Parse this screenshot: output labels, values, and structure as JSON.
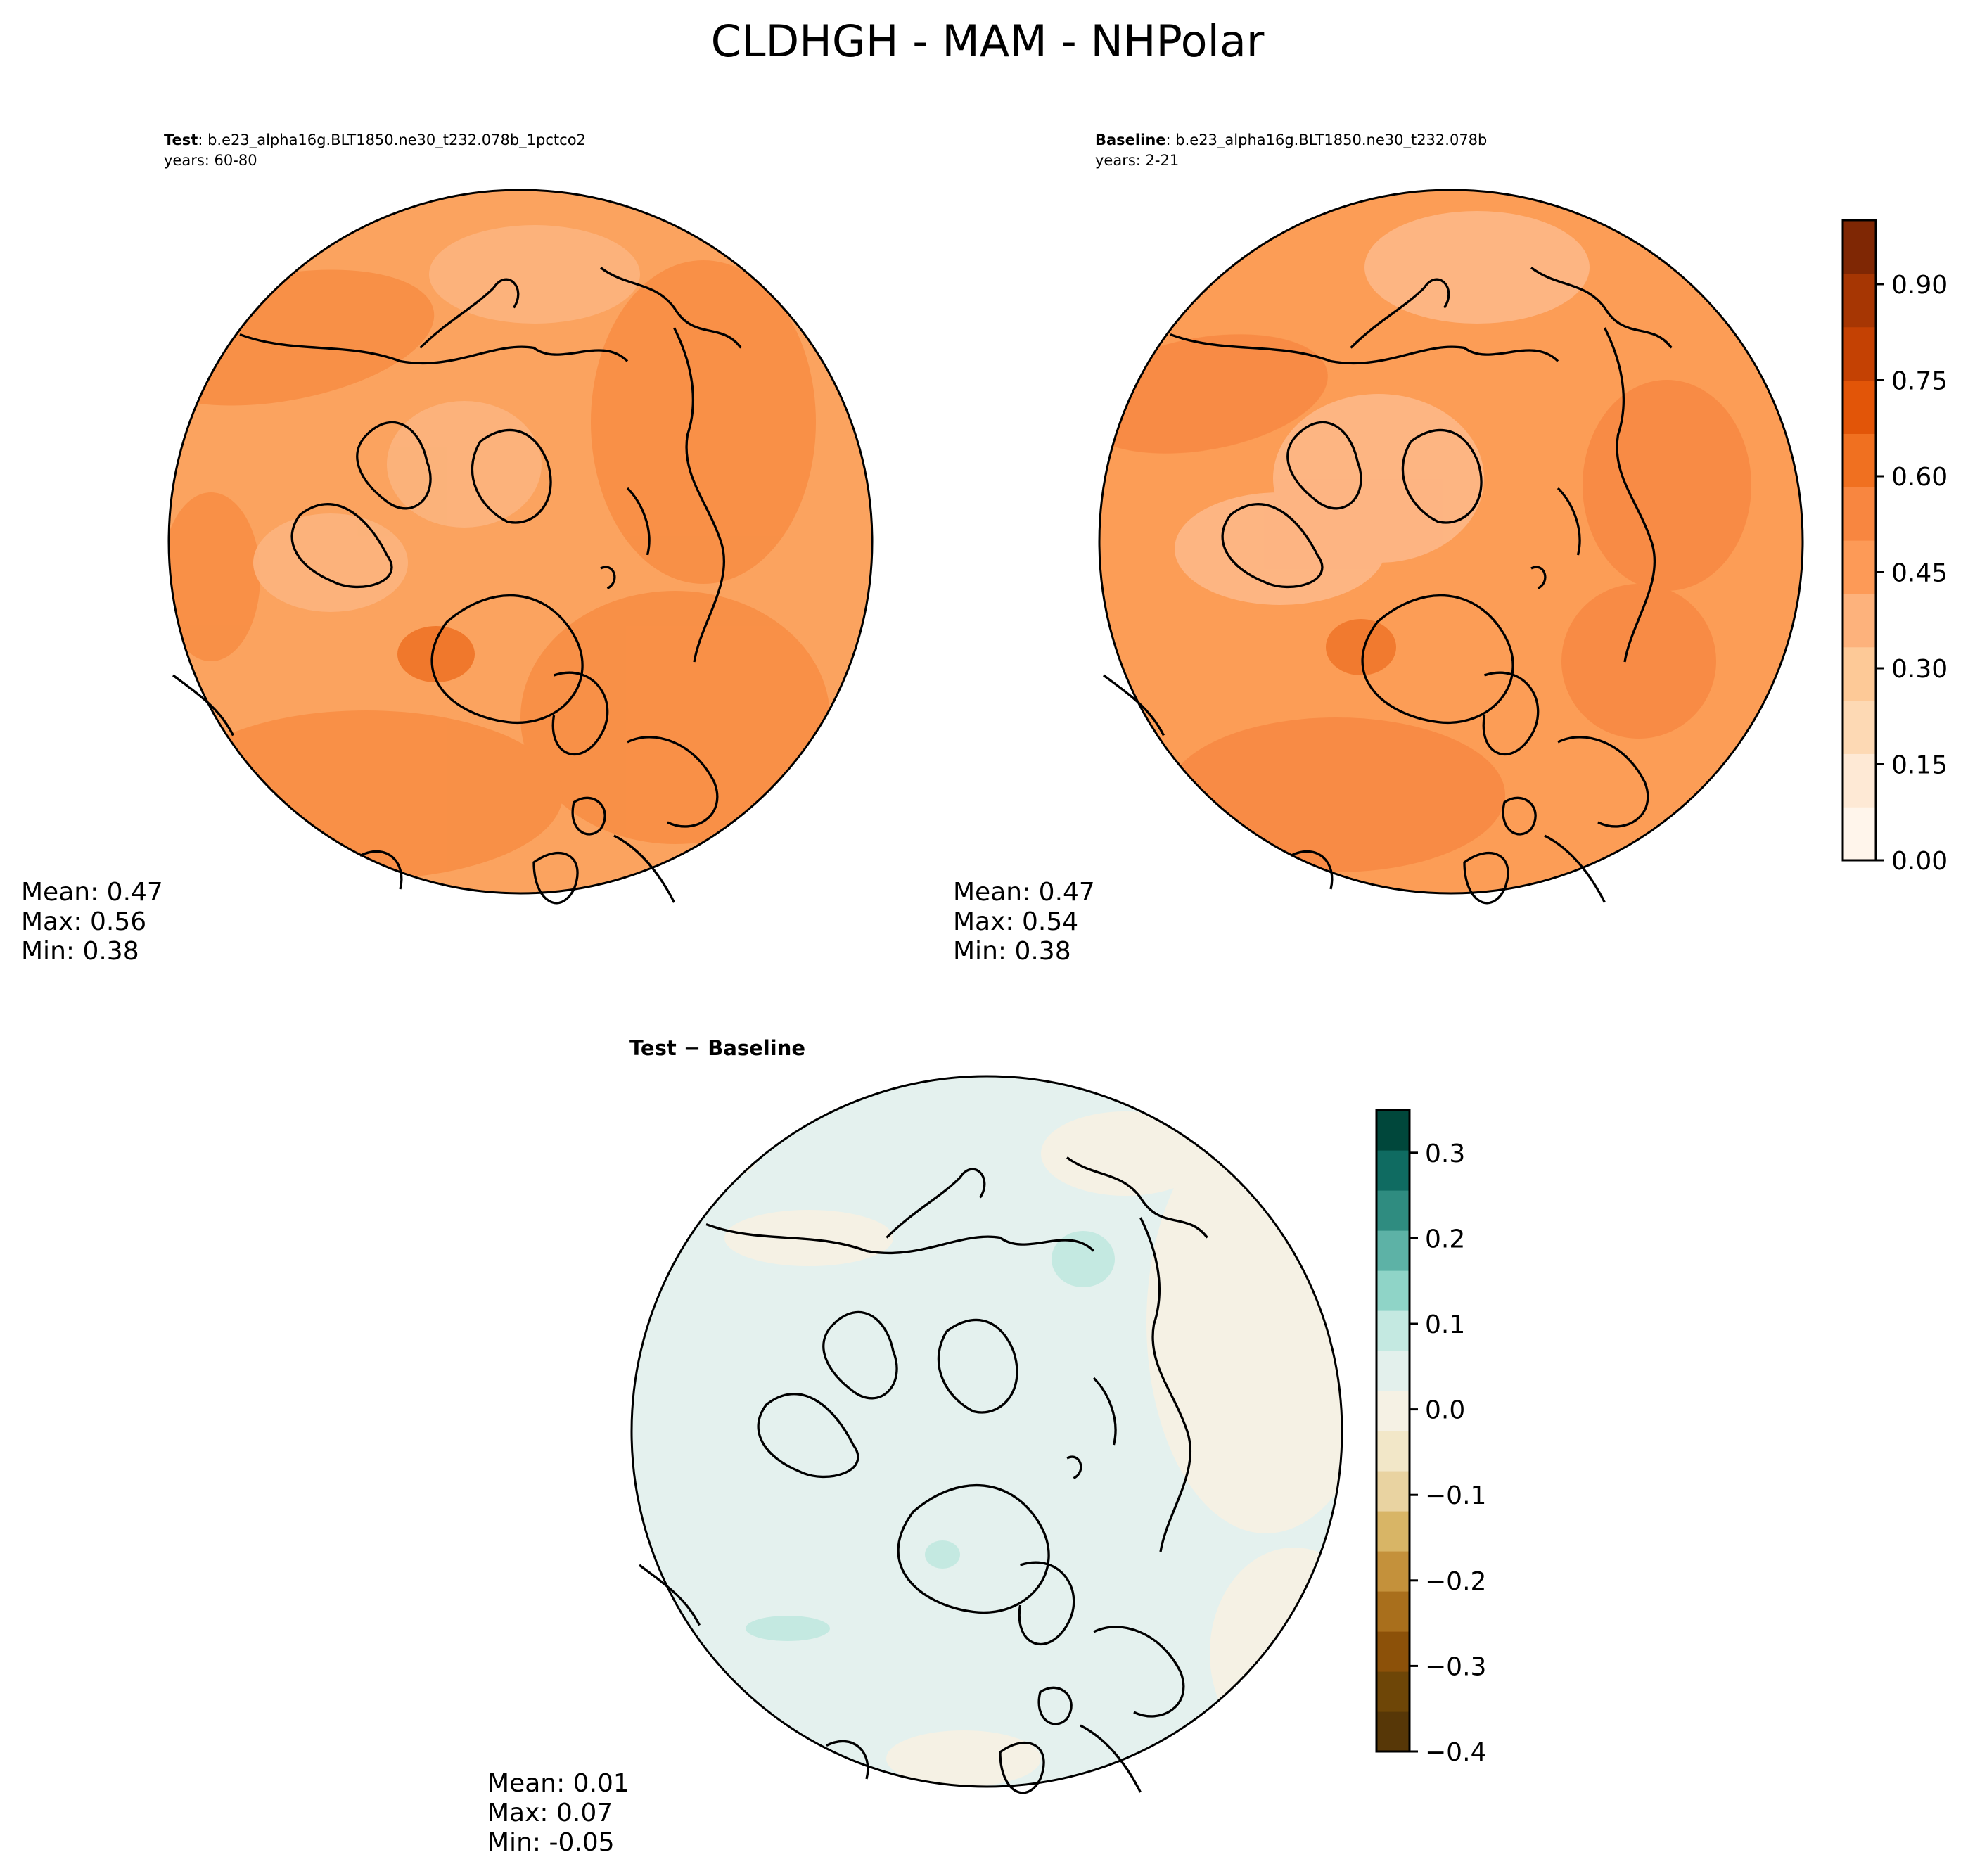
{
  "figure": {
    "title": "CLDHGH - MAM - NHPolar"
  },
  "colors": {
    "oranges": [
      "#fff5eb",
      "#fee9d5",
      "#fdd9b4",
      "#fdc997",
      "#fdb27c",
      "#fd9a57",
      "#f88640",
      "#f07020",
      "#e25508",
      "#c44103",
      "#a63603",
      "#7f2704"
    ],
    "brbg": [
      "#573707",
      "#6e4607",
      "#8c5109",
      "#a96f1c",
      "#c4913b",
      "#d8b566",
      "#e9d3a1",
      "#f2e7c8",
      "#f5f1e4",
      "#e3f0ec",
      "#c4e9e1",
      "#8fd4c7",
      "#5db2a6",
      "#2f8c80",
      "#0f6b61",
      "#00473b"
    ],
    "test_field": "#fba35f",
    "baseline_field": "#fc9d56",
    "diff_field": "#e4f1ee"
  },
  "chart_data": [
    {
      "type": "heatmap",
      "projection": "north-polar-stereographic",
      "header_bold": "Test",
      "header_text": ": b.e23_alpha16g.BLT1850.ne30_t232.078b_1pctco2",
      "subtitle": "years: 60-80",
      "stats": {
        "mean": "Mean:  0.47",
        "max": "Max:  0.56",
        "min": "Min:  0.38"
      },
      "value_range": [
        0.38,
        0.56
      ]
    },
    {
      "type": "heatmap",
      "projection": "north-polar-stereographic",
      "header_bold": "Baseline",
      "header_text": ": b.e23_alpha16g.BLT1850.ne30_t232.078b",
      "subtitle": "years: 2-21",
      "stats": {
        "mean": "Mean:  0.47",
        "max": "Max:  0.54",
        "min": "Min:  0.38"
      },
      "value_range": [
        0.38,
        0.54
      ],
      "colorbar": {
        "min": 0.0,
        "max": 1.0,
        "ticks": [
          0.0,
          0.15,
          0.3,
          0.45,
          0.6,
          0.75,
          0.9
        ],
        "tick_labels": [
          "0.00",
          "0.15",
          "0.30",
          "0.45",
          "0.60",
          "0.75",
          "0.90"
        ],
        "colormap": "Oranges"
      }
    },
    {
      "type": "heatmap",
      "projection": "north-polar-stereographic",
      "header_bold": "Test − Baseline",
      "stats": {
        "mean": "Mean:  0.01",
        "max": "Max:  0.07",
        "min": "Min: -0.05"
      },
      "value_range": [
        -0.05,
        0.07
      ],
      "colorbar": {
        "min": -0.4,
        "max": 0.35,
        "ticks": [
          -0.4,
          -0.3,
          -0.2,
          -0.1,
          0.0,
          0.1,
          0.2,
          0.3
        ],
        "tick_labels": [
          "−0.4",
          "−0.3",
          "−0.2",
          "−0.1",
          "0.0",
          "0.1",
          "0.2",
          "0.3"
        ],
        "colormap": "BrBG"
      }
    }
  ]
}
